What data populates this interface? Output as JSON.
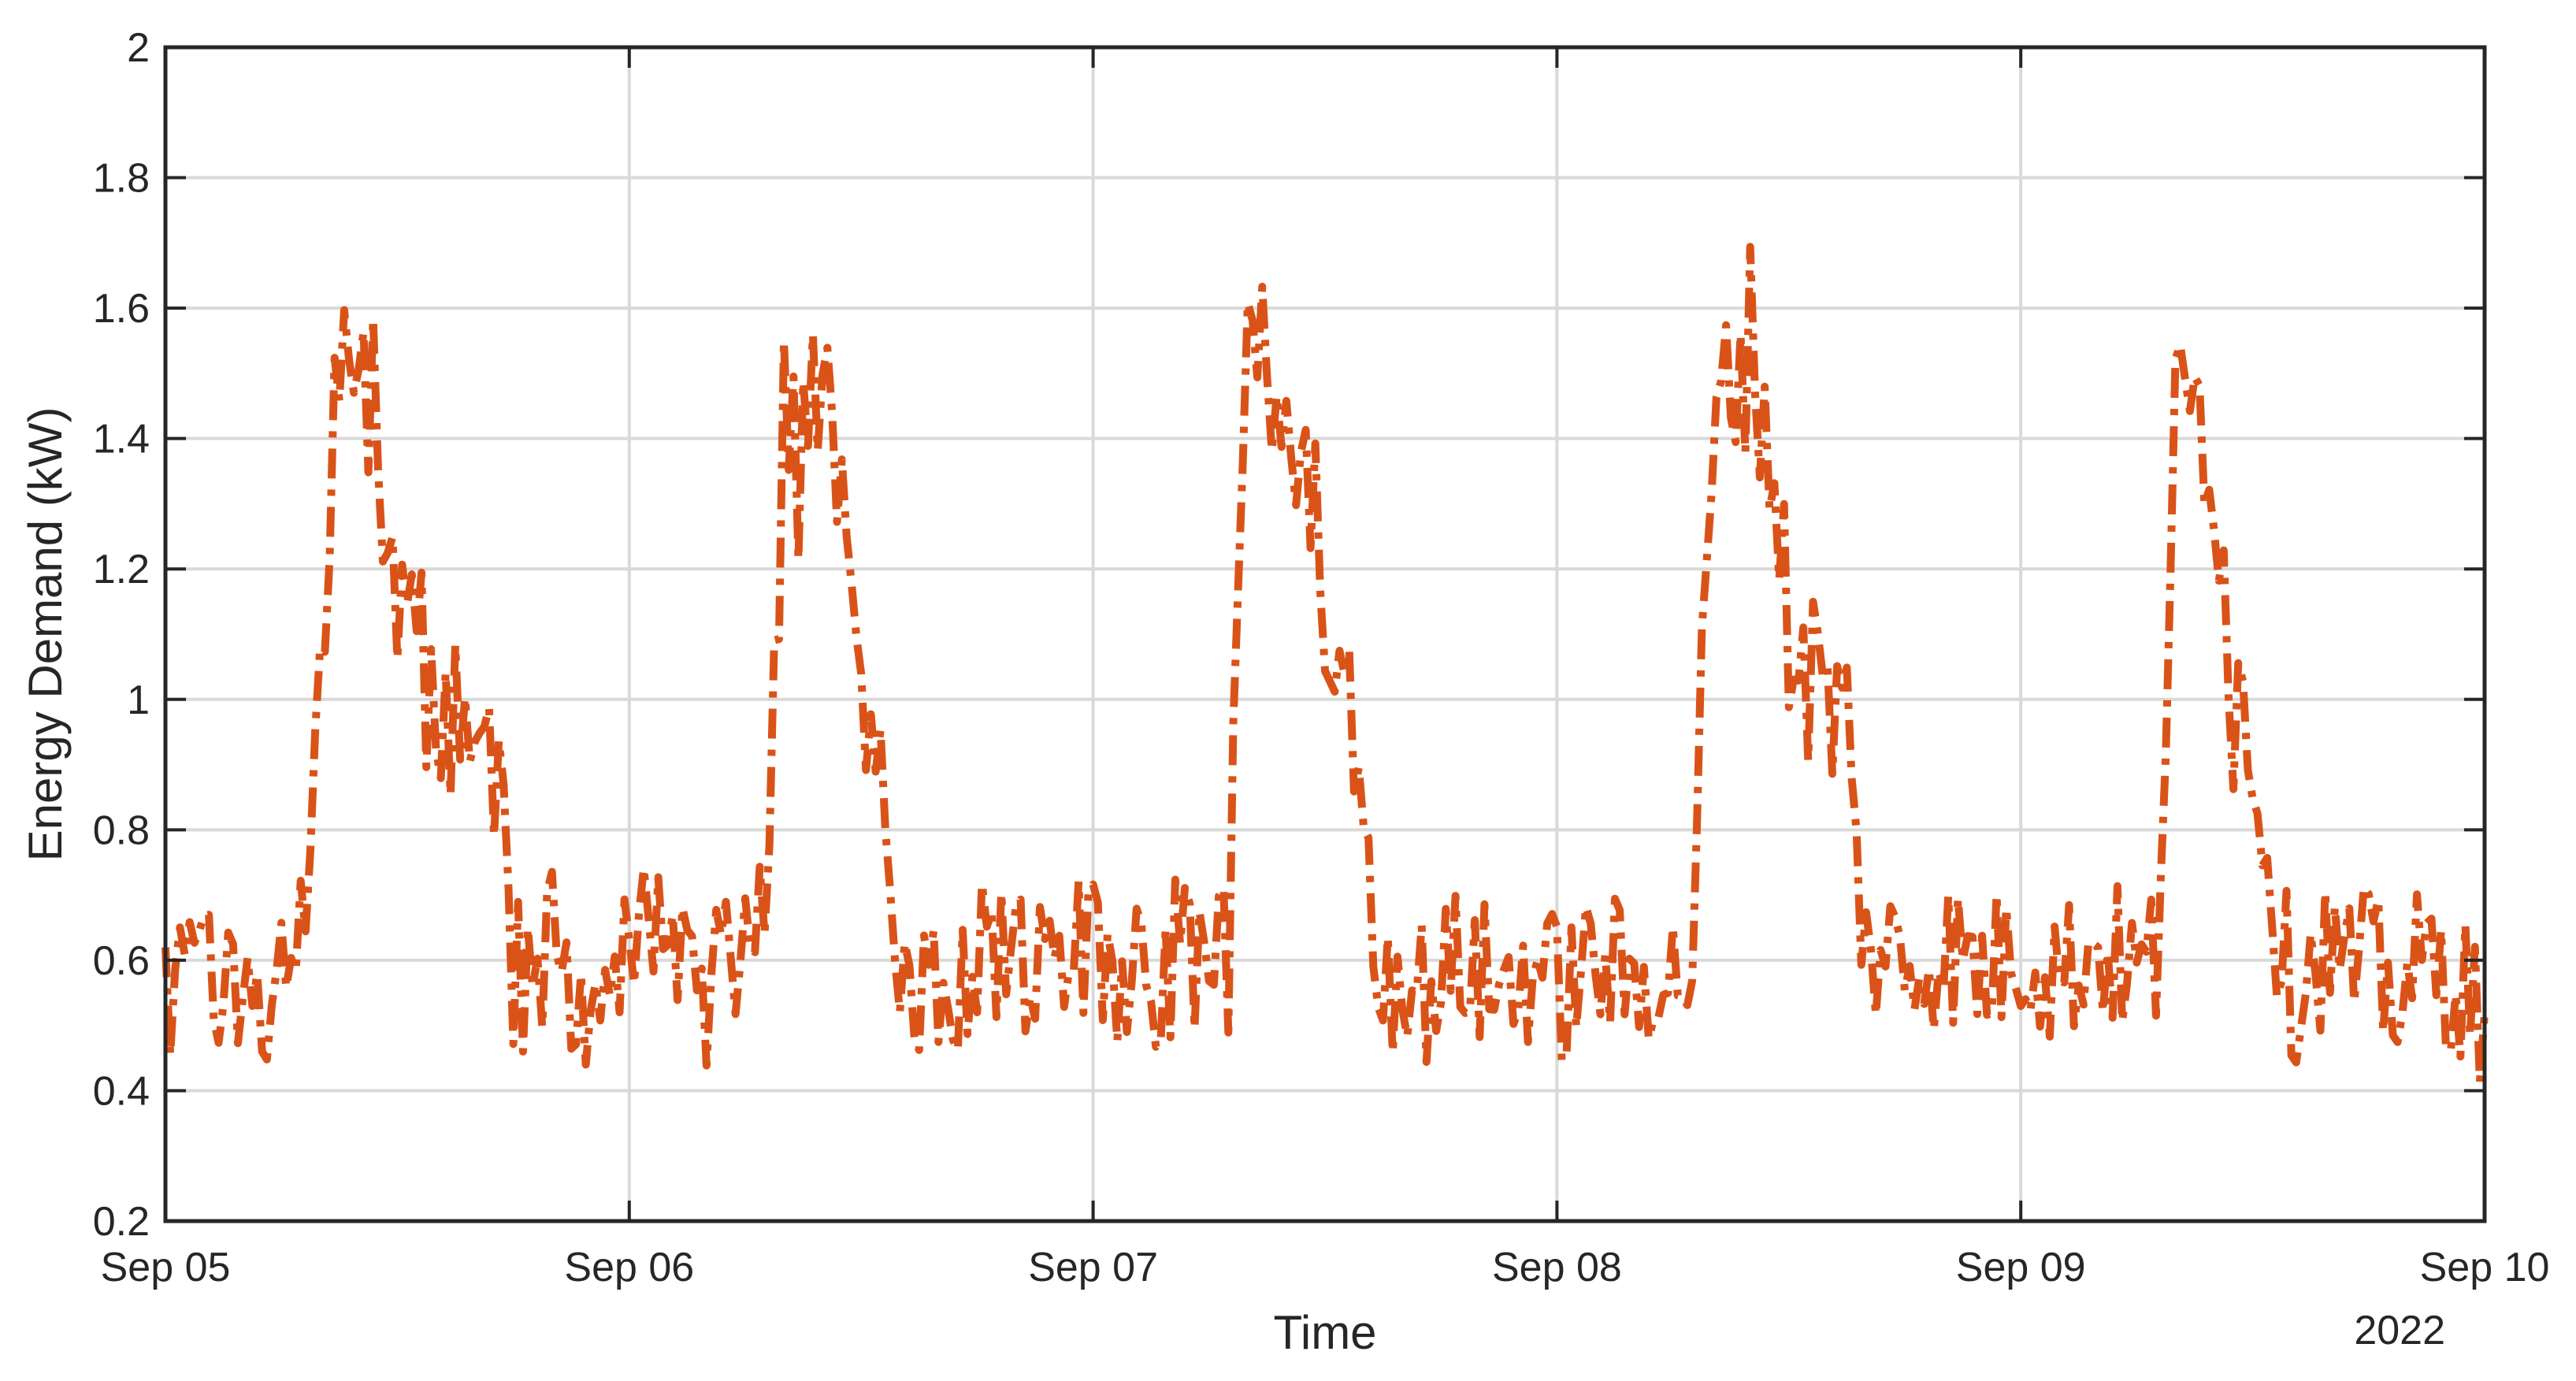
{
  "chart_data": {
    "type": "line",
    "xlabel": "Time",
    "ylabel": "Energy Demand (kW)",
    "year_label": "2022",
    "x_tick_labels": [
      "Sep 05",
      "Sep 06",
      "Sep 07",
      "Sep 08",
      "Sep 09",
      "Sep 10"
    ],
    "xlim": [
      "2022-09-05 00:00",
      "2022-09-10 00:00"
    ],
    "ylim": [
      0.2,
      2
    ],
    "y_ticks": [
      0.2,
      0.4,
      0.6,
      0.8,
      1,
      1.2,
      1.4,
      1.6,
      1.8,
      2
    ],
    "y_tick_labels": [
      "0.2",
      "0.4",
      "0.6",
      "0.8",
      "1",
      "1.2",
      "1.4",
      "1.6",
      "1.8",
      "2"
    ],
    "grid": true,
    "legend": "none",
    "series_color": "#d95319",
    "line_style": "dash-dot",
    "sampling_interval_minutes": 15,
    "series": [
      {
        "x": [
          "2022-09-05 00:00",
          "2022-09-05 01:00",
          "2022-09-05 02:00",
          "2022-09-05 03:00",
          "2022-09-05 04:00",
          "2022-09-05 05:00",
          "2022-09-05 06:00",
          "2022-09-05 07:00",
          "2022-09-05 08:00",
          "2022-09-05 09:00",
          "2022-09-05 10:00",
          "2022-09-05 11:00",
          "2022-09-05 12:00",
          "2022-09-05 13:00",
          "2022-09-05 14:00",
          "2022-09-05 15:00",
          "2022-09-05 16:00",
          "2022-09-05 17:00",
          "2022-09-05 18:00",
          "2022-09-05 19:00",
          "2022-09-05 20:00",
          "2022-09-05 21:00",
          "2022-09-05 22:00",
          "2022-09-05 23:00",
          "2022-09-06 00:00",
          "2022-09-06 01:00",
          "2022-09-06 02:00",
          "2022-09-06 03:00",
          "2022-09-06 04:00",
          "2022-09-06 05:00",
          "2022-09-06 06:00",
          "2022-09-06 07:00",
          "2022-09-06 08:00",
          "2022-09-06 09:00",
          "2022-09-06 10:00",
          "2022-09-06 11:00",
          "2022-09-06 12:00",
          "2022-09-06 13:00",
          "2022-09-06 14:00",
          "2022-09-06 15:00",
          "2022-09-06 16:00",
          "2022-09-06 17:00",
          "2022-09-06 18:00",
          "2022-09-06 19:00",
          "2022-09-06 20:00",
          "2022-09-06 21:00",
          "2022-09-06 22:00",
          "2022-09-06 23:00",
          "2022-09-07 00:00",
          "2022-09-07 01:00",
          "2022-09-07 02:00",
          "2022-09-07 03:00",
          "2022-09-07 04:00",
          "2022-09-07 05:00",
          "2022-09-07 06:00",
          "2022-09-07 07:00",
          "2022-09-07 08:00",
          "2022-09-07 09:00",
          "2022-09-07 10:00",
          "2022-09-07 11:00",
          "2022-09-07 12:00",
          "2022-09-07 13:00",
          "2022-09-07 14:00",
          "2022-09-07 15:00",
          "2022-09-07 16:00",
          "2022-09-07 17:00",
          "2022-09-07 18:00",
          "2022-09-07 19:00",
          "2022-09-07 20:00",
          "2022-09-07 21:00",
          "2022-09-07 22:00",
          "2022-09-07 23:00",
          "2022-09-08 00:00",
          "2022-09-08 01:00",
          "2022-09-08 02:00",
          "2022-09-08 03:00",
          "2022-09-08 04:00",
          "2022-09-08 05:00",
          "2022-09-08 06:00",
          "2022-09-08 07:00",
          "2022-09-08 08:00",
          "2022-09-08 09:00",
          "2022-09-08 10:00",
          "2022-09-08 11:00",
          "2022-09-08 12:00",
          "2022-09-08 13:00",
          "2022-09-08 14:00",
          "2022-09-08 15:00",
          "2022-09-08 16:00",
          "2022-09-08 17:00",
          "2022-09-08 18:00",
          "2022-09-08 19:00",
          "2022-09-08 20:00",
          "2022-09-08 21:00",
          "2022-09-08 22:00",
          "2022-09-08 23:00",
          "2022-09-09 00:00",
          "2022-09-09 01:00",
          "2022-09-09 02:00",
          "2022-09-09 03:00",
          "2022-09-09 04:00",
          "2022-09-09 05:00",
          "2022-09-09 06:00",
          "2022-09-09 07:00",
          "2022-09-09 08:00",
          "2022-09-09 09:00",
          "2022-09-09 10:00",
          "2022-09-09 11:00",
          "2022-09-09 12:00",
          "2022-09-09 13:00",
          "2022-09-09 14:00",
          "2022-09-09 15:00",
          "2022-09-09 16:00",
          "2022-09-09 17:00",
          "2022-09-09 18:00",
          "2022-09-09 19:00",
          "2022-09-09 20:00",
          "2022-09-09 21:00",
          "2022-09-09 22:00",
          "2022-09-09 23:00",
          "2022-09-10 00:00"
        ],
        "y": [
          0.55,
          0.6,
          0.7,
          0.5,
          0.62,
          0.54,
          0.6,
          0.62,
          0.95,
          1.6,
          1.5,
          1.4,
          1.1,
          1.05,
          1.0,
          0.98,
          0.9,
          0.92,
          0.58,
          0.55,
          0.62,
          0.58,
          0.55,
          0.6,
          0.62,
          0.65,
          0.6,
          0.57,
          0.55,
          0.6,
          0.62,
          0.65,
          1.4,
          1.35,
          1.45,
          1.3,
          1.0,
          0.9,
          0.55,
          0.52,
          0.55,
          0.58,
          0.6,
          0.62,
          0.6,
          0.58,
          0.62,
          0.6,
          0.62,
          0.6,
          0.58,
          0.57,
          0.6,
          0.62,
          0.58,
          0.6,
          1.6,
          1.5,
          1.45,
          1.4,
          1.1,
          1.0,
          0.85,
          0.55,
          0.6,
          0.55,
          0.57,
          0.6,
          0.58,
          0.55,
          0.57,
          0.6,
          0.55,
          0.57,
          0.6,
          0.58,
          0.55,
          0.6,
          0.57,
          0.6,
          1.35,
          1.5,
          1.55,
          1.4,
          1.1,
          1.05,
          1.0,
          0.95,
          0.6,
          0.62,
          0.58,
          0.6,
          0.62,
          0.6,
          0.58,
          0.6,
          0.62,
          0.6,
          0.58,
          0.6,
          0.62,
          0.6,
          0.58,
          0.6,
          1.4,
          1.45,
          1.4,
          1.0,
          0.95,
          0.7,
          0.55,
          0.6,
          0.62,
          0.58,
          0.6,
          0.55,
          0.57,
          0.6,
          0.58,
          0.55,
          0.52
        ]
      }
    ]
  }
}
